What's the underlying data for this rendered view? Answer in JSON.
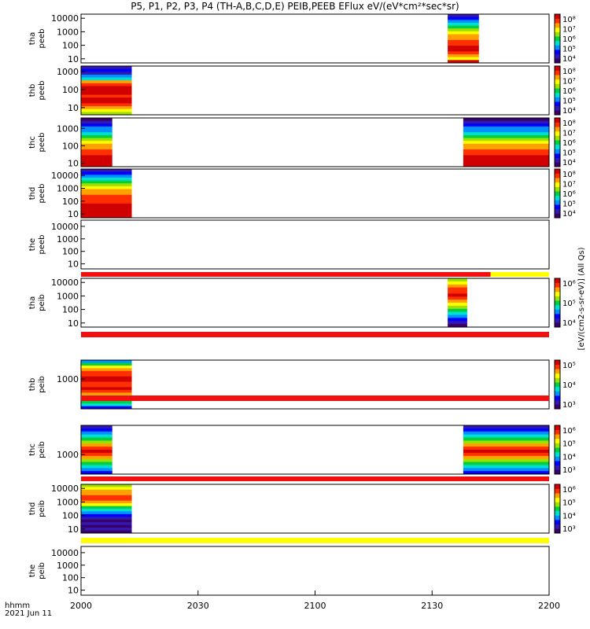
{
  "title": "P5, P1, P2, P3, P4 (TH-A,B,C,D,E) PEIB,PEEB EFlux eV/(eV*cm²*sec*sr)",
  "time_unit_label": "hhmm",
  "date_label": "2021 Jun 11",
  "colorbar_label": "[eV/(cm2-s-sr-eV)] (All Qs)",
  "colors": {
    "spectrum": [
      "#3a006a",
      "#3018b0",
      "#0000ff",
      "#0090ff",
      "#00e0d0",
      "#00d040",
      "#a0e000",
      "#ffff00",
      "#ffa000",
      "#ff3000",
      "#d00000"
    ],
    "flag_red": "#f01010",
    "flag_yellow": "#ffff00"
  },
  "chart_data": {
    "type": "heatmap",
    "x_ticks": [
      "2000",
      "2030",
      "2100",
      "2130",
      "2200"
    ],
    "x_range_minutes": [
      0,
      120
    ],
    "panels": [
      {
        "id": "tha_peeb",
        "label": [
          "tha",
          "peeb"
        ],
        "y_ticks": [
          "10",
          "100",
          "1000",
          "10000"
        ],
        "y_log": [
          0.7,
          4.3
        ],
        "blocks": [
          {
            "t0": 94,
            "t1": 102,
            "profile": "peeb_high"
          }
        ],
        "colorbar": [
          "10⁴",
          "10⁵",
          "10⁶",
          "10⁷",
          "10⁸"
        ]
      },
      {
        "id": "thb_peeb",
        "label": [
          "thb",
          "peeb"
        ],
        "y_ticks": [
          "10",
          "100",
          "1000"
        ],
        "y_log": [
          0.6,
          3.3
        ],
        "blocks": [
          {
            "t0": 0,
            "t1": 13,
            "profile": "peeb_hot"
          }
        ],
        "colorbar": [
          "10⁴",
          "10⁵",
          "10⁶",
          "10⁷",
          "10⁸"
        ]
      },
      {
        "id": "thc_peeb",
        "label": [
          "thc",
          "peeb"
        ],
        "y_ticks": [
          "10",
          "100",
          "1000"
        ],
        "y_log": [
          0.8,
          3.6
        ],
        "blocks": [
          {
            "t0": 0,
            "t1": 8,
            "profile": "peeb_thc"
          },
          {
            "t0": 98,
            "t1": 120,
            "profile": "peeb_thc"
          }
        ],
        "colorbar": [
          "10⁴",
          "10⁵",
          "10⁶",
          "10⁷",
          "10⁸"
        ]
      },
      {
        "id": "thd_peeb",
        "label": [
          "thd",
          "peeb"
        ],
        "y_ticks": [
          "10",
          "100",
          "1000",
          "10000"
        ],
        "y_log": [
          0.7,
          4.5
        ],
        "blocks": [
          {
            "t0": 0,
            "t1": 13,
            "profile": "peeb_thd"
          }
        ],
        "colorbar": [
          "10⁴",
          "10⁵",
          "10⁶",
          "10⁷",
          "10⁸"
        ]
      },
      {
        "id": "the_peeb",
        "label": [
          "the",
          "peeb"
        ],
        "y_ticks": [
          "10",
          "100",
          "1000",
          "10000"
        ],
        "y_log": [
          0.6,
          4.5
        ],
        "blocks": [],
        "colorbar": []
      },
      {
        "id": "tha_peib",
        "label": [
          "tha",
          "peib"
        ],
        "y_ticks": [
          "10",
          "100",
          "1000",
          "10000"
        ],
        "y_log": [
          0.7,
          4.3
        ],
        "blocks": [
          {
            "t0": 94,
            "t1": 99,
            "profile": "peib_tha"
          }
        ],
        "colorbar": [
          "10⁴",
          "10⁵",
          "10⁶"
        ]
      },
      {
        "id": "thb_peib",
        "label": [
          "thb",
          "peib"
        ],
        "y_ticks": [
          "1000"
        ],
        "y_log": [
          1.9,
          3.7
        ],
        "blocks": [
          {
            "t0": 0,
            "t1": 13,
            "profile": "peib_thb"
          }
        ],
        "colorbar": [
          "10³",
          "10⁴",
          "10⁵"
        ]
      },
      {
        "id": "thc_peib",
        "label": [
          "thc",
          "peib"
        ],
        "y_ticks": [
          "1000"
        ],
        "y_log": [
          2.4,
          3.9
        ],
        "blocks": [
          {
            "t0": 0,
            "t1": 8,
            "profile": "peib_thc"
          },
          {
            "t0": 98,
            "t1": 120,
            "profile": "peib_thc"
          }
        ],
        "colorbar": [
          "10³",
          "10⁴",
          "10⁵",
          "10⁶"
        ]
      },
      {
        "id": "thd_peib",
        "label": [
          "thd",
          "peib"
        ],
        "y_ticks": [
          "10",
          "100",
          "1000",
          "10000"
        ],
        "y_log": [
          0.7,
          4.3
        ],
        "blocks": [
          {
            "t0": 0,
            "t1": 13,
            "profile": "peib_thd"
          }
        ],
        "colorbar": [
          "10³",
          "10⁴",
          "10⁵",
          "10⁶"
        ]
      },
      {
        "id": "the_peib",
        "label": [
          "the",
          "peib"
        ],
        "y_ticks": [
          "10",
          "100",
          "1000",
          "10000"
        ],
        "y_log": [
          0.6,
          4.5
        ],
        "blocks": [],
        "colorbar": []
      }
    ],
    "flag_bars": [
      {
        "after_panel": 4,
        "segments": [
          {
            "t0": 0,
            "t1": 105,
            "color": "red"
          },
          {
            "t0": 105,
            "t1": 120,
            "color": "yellow"
          }
        ]
      },
      {
        "after_panel": 5,
        "segments": [
          {
            "t0": 0,
            "t1": 120,
            "color": "red"
          }
        ]
      },
      {
        "after_panel": 6,
        "segments": [
          {
            "t0": 0,
            "t1": 120,
            "color": "red"
          }
        ]
      },
      {
        "after_panel": 7,
        "segments": [
          {
            "t0": 0,
            "t1": 120,
            "color": "red"
          }
        ]
      },
      {
        "after_panel": 8,
        "segments": [
          {
            "t0": 0,
            "t1": 120,
            "color": "yellow"
          }
        ]
      }
    ]
  }
}
